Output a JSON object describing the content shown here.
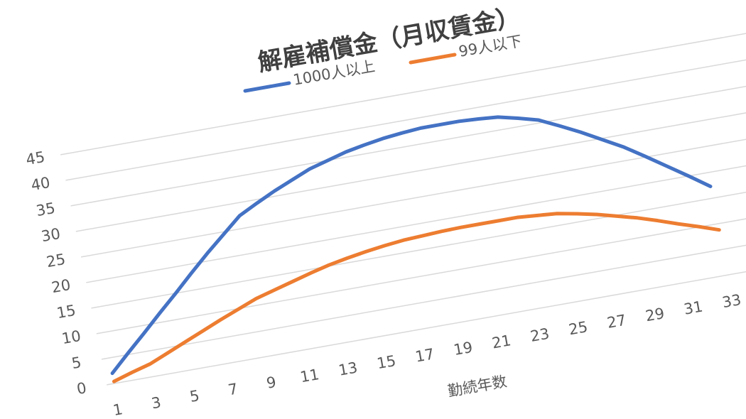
{
  "chart_data": {
    "type": "line",
    "title": "解雇補償金（月収賃金）",
    "x_label": "勤続年数",
    "categories": [
      "1",
      null,
      "3",
      null,
      "5",
      null,
      "7",
      null,
      "9",
      null,
      "11",
      null,
      "13",
      null,
      "15",
      null,
      "17",
      null,
      "19",
      null,
      "21",
      null,
      "23",
      null,
      "25",
      null,
      "27",
      null,
      "29",
      null,
      "31",
      null,
      "33"
    ],
    "series": [
      {
        "name": "1000人以上",
        "color": "#4472c4",
        "values": [
          2,
          5.3,
          8.5,
          11.8,
          15,
          18.3,
          21.5,
          24.5,
          27.5,
          29.3,
          31,
          32.5,
          34,
          35,
          36,
          36.7,
          37.3,
          37.7,
          38,
          38,
          38,
          37.8,
          37.5,
          36.6,
          35.6,
          33.8,
          31.9,
          29.8,
          27.7,
          25.2,
          22.6,
          20,
          17.3
        ]
      },
      {
        "name": "99人以下",
        "color": "#ed7d31",
        "values": [
          0.4,
          1.5,
          2.5,
          4,
          5.5,
          7,
          8.5,
          9.9,
          11.3,
          12.3,
          13.3,
          14.3,
          15.2,
          15.9,
          16.5,
          17,
          17.4,
          17.6,
          17.8,
          17.9,
          17.9,
          17.9,
          17.9,
          17.6,
          17.3,
          16.6,
          15.8,
          14.8,
          13.8,
          12.6,
          11.3,
          10.1,
          8.8
        ]
      }
    ],
    "ylim": [
      0,
      45
    ],
    "yticks": [
      0,
      5,
      10,
      15,
      20,
      25,
      30,
      35,
      40,
      45
    ],
    "grid": true
  }
}
